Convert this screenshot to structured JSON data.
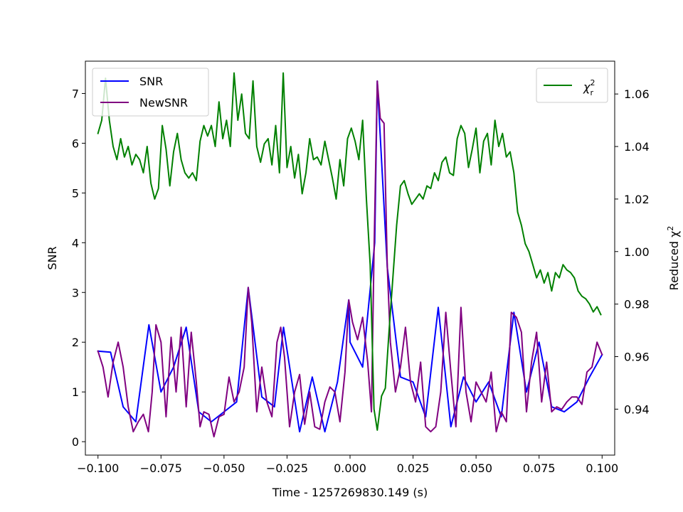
{
  "chart_data": {
    "type": "line",
    "xlabel": "Time - 1257269830.149 (s)",
    "ylabel_left": "SNR",
    "ylabel_right": "Reduced χ",
    "ylabel_right_sup": "2",
    "xlim": [
      -0.105,
      0.105
    ],
    "ylim_left": [
      -0.27,
      7.65
    ],
    "ylim_right": [
      0.9225,
      1.0725
    ],
    "xticks": [
      -0.1,
      -0.075,
      -0.05,
      -0.025,
      0.0,
      0.025,
      0.05,
      0.075,
      0.1
    ],
    "xtick_labels": [
      "−0.100",
      "−0.075",
      "−0.050",
      "−0.025",
      "0.000",
      "0.025",
      "0.050",
      "0.075",
      "0.100"
    ],
    "yticks_left": [
      0,
      1,
      2,
      3,
      4,
      5,
      6,
      7
    ],
    "ytick_labels_left": [
      "0",
      "1",
      "2",
      "3",
      "4",
      "5",
      "6",
      "7"
    ],
    "yticks_right": [
      0.94,
      0.96,
      0.98,
      1.0,
      1.02,
      1.04,
      1.06
    ],
    "ytick_labels_right": [
      "0.94",
      "0.96",
      "0.98",
      "1.00",
      "1.02",
      "1.04",
      "1.06"
    ],
    "legend_left": {
      "placement": "upper-left",
      "entries": [
        "SNR",
        "NewSNR"
      ]
    },
    "legend_right": {
      "placement": "upper-right",
      "entries": [
        "χ"
      ],
      "entry_sup": "2",
      "entry_sub": "r"
    },
    "series": [
      {
        "name": "SNR",
        "axis": "left",
        "color": "#0000ff",
        "x": [
          -0.1,
          -0.095,
          -0.09,
          -0.085,
          -0.0798,
          -0.075,
          -0.07,
          -0.065,
          -0.06,
          -0.055,
          -0.05,
          -0.045,
          -0.0404,
          -0.035,
          -0.03,
          -0.0264,
          -0.02,
          -0.015,
          -0.01,
          -0.005,
          -0.0005,
          0.0,
          0.005,
          0.0098,
          0.0108,
          0.0148,
          0.02,
          0.025,
          0.03,
          0.035,
          0.04,
          0.045,
          0.05,
          0.055,
          0.06,
          0.065,
          0.07,
          0.075,
          0.08,
          0.085,
          0.09,
          0.095,
          0.1
        ],
        "values": [
          1.82,
          1.8,
          0.7,
          0.4,
          2.35,
          1.0,
          1.5,
          2.3,
          0.6,
          0.4,
          0.6,
          0.8,
          3.1,
          0.9,
          0.7,
          2.3,
          0.2,
          1.3,
          0.2,
          1.2,
          2.85,
          2.0,
          1.5,
          4.0,
          7.25,
          3.5,
          1.3,
          1.2,
          0.5,
          2.7,
          0.3,
          1.3,
          0.8,
          1.2,
          0.5,
          2.6,
          1.0,
          2.0,
          0.7,
          0.6,
          0.8,
          1.3,
          1.75
        ]
      },
      {
        "name": "NewSNR",
        "axis": "left",
        "color": "#800080",
        "x": [
          -0.1,
          -0.098,
          -0.096,
          -0.094,
          -0.092,
          -0.09,
          -0.088,
          -0.086,
          -0.084,
          -0.082,
          -0.08,
          -0.0785,
          -0.077,
          -0.075,
          -0.073,
          -0.071,
          -0.069,
          -0.067,
          -0.065,
          -0.063,
          -0.061,
          -0.0595,
          -0.058,
          -0.056,
          -0.054,
          -0.052,
          -0.05,
          -0.048,
          -0.046,
          -0.044,
          -0.042,
          -0.0404,
          -0.039,
          -0.037,
          -0.035,
          -0.033,
          -0.031,
          -0.029,
          -0.0275,
          -0.026,
          -0.024,
          -0.022,
          -0.02,
          -0.018,
          -0.016,
          -0.014,
          -0.012,
          -0.01,
          -0.008,
          -0.006,
          -0.004,
          -0.002,
          -0.0005,
          0.001,
          0.003,
          0.005,
          0.007,
          0.0085,
          0.0095,
          0.0108,
          0.012,
          0.0135,
          0.0148,
          0.016,
          0.018,
          0.02,
          0.022,
          0.024,
          0.026,
          0.028,
          0.03,
          0.032,
          0.034,
          0.036,
          0.038,
          0.04,
          0.042,
          0.044,
          0.046,
          0.048,
          0.05,
          0.052,
          0.054,
          0.056,
          0.058,
          0.06,
          0.062,
          0.064,
          0.066,
          0.068,
          0.07,
          0.072,
          0.074,
          0.076,
          0.078,
          0.08,
          0.082,
          0.084,
          0.086,
          0.088,
          0.09,
          0.092,
          0.094,
          0.096,
          0.098,
          0.1
        ],
        "values": [
          1.82,
          1.5,
          0.9,
          1.6,
          2.0,
          1.5,
          0.7,
          0.2,
          0.4,
          0.55,
          0.2,
          1.0,
          2.35,
          2.0,
          0.5,
          2.1,
          1.0,
          2.3,
          0.7,
          2.2,
          1.2,
          0.3,
          0.6,
          0.55,
          0.1,
          0.5,
          0.55,
          1.3,
          0.8,
          1.0,
          1.5,
          3.1,
          2.4,
          0.6,
          1.5,
          0.8,
          0.5,
          2.0,
          2.3,
          1.7,
          0.3,
          1.0,
          1.35,
          0.35,
          1.0,
          0.3,
          0.25,
          0.8,
          1.1,
          1.0,
          0.4,
          1.4,
          2.85,
          2.4,
          2.05,
          2.5,
          1.6,
          0.6,
          3.8,
          7.25,
          6.5,
          6.4,
          3.5,
          2.0,
          1.0,
          1.5,
          2.3,
          1.2,
          0.8,
          1.6,
          0.3,
          0.2,
          0.3,
          1.0,
          2.6,
          1.4,
          0.3,
          2.7,
          1.0,
          0.4,
          1.2,
          1.0,
          0.8,
          1.4,
          0.2,
          0.6,
          0.4,
          2.6,
          2.5,
          2.2,
          0.6,
          1.6,
          2.2,
          0.8,
          1.6,
          0.6,
          0.7,
          0.65,
          0.8,
          0.9,
          0.9,
          0.75,
          1.4,
          1.5,
          2.0,
          1.75
        ]
      },
      {
        "name": "χr²",
        "axis": "right",
        "color": "#008000",
        "x": [
          -0.1,
          -0.0985,
          -0.097,
          -0.0955,
          -0.094,
          -0.0925,
          -0.091,
          -0.0895,
          -0.088,
          -0.0865,
          -0.085,
          -0.0835,
          -0.082,
          -0.0805,
          -0.079,
          -0.0775,
          -0.076,
          -0.0745,
          -0.073,
          -0.0715,
          -0.07,
          -0.0685,
          -0.067,
          -0.0655,
          -0.064,
          -0.0625,
          -0.061,
          -0.0595,
          -0.058,
          -0.0565,
          -0.055,
          -0.0535,
          -0.052,
          -0.0505,
          -0.049,
          -0.0475,
          -0.046,
          -0.0445,
          -0.043,
          -0.0415,
          -0.04,
          -0.0385,
          -0.037,
          -0.0355,
          -0.034,
          -0.0325,
          -0.031,
          -0.0295,
          -0.028,
          -0.0265,
          -0.025,
          -0.0235,
          -0.022,
          -0.0205,
          -0.019,
          -0.0175,
          -0.016,
          -0.0145,
          -0.013,
          -0.0115,
          -0.01,
          -0.0085,
          -0.007,
          -0.0055,
          -0.004,
          -0.0025,
          -0.001,
          0.0005,
          0.002,
          0.0035,
          0.005,
          0.0065,
          0.008,
          0.0095,
          0.0108,
          0.0125,
          0.014,
          0.0155,
          0.017,
          0.0185,
          0.02,
          0.0215,
          0.023,
          0.0245,
          0.026,
          0.0275,
          0.029,
          0.0305,
          0.032,
          0.0335,
          0.035,
          0.0365,
          0.038,
          0.0395,
          0.041,
          0.0425,
          0.044,
          0.0455,
          0.047,
          0.0485,
          0.05,
          0.0515,
          0.053,
          0.0545,
          0.056,
          0.0575,
          0.059,
          0.0605,
          0.062,
          0.0635,
          0.065,
          0.0665,
          0.068,
          0.0695,
          0.071,
          0.0725,
          0.074,
          0.0755,
          0.077,
          0.0785,
          0.08,
          0.0815,
          0.083,
          0.0845,
          0.086,
          0.0875,
          0.089,
          0.0905,
          0.092,
          0.0935,
          0.095,
          0.0965,
          0.098,
          0.0995
        ],
        "values": [
          1.045,
          1.05,
          1.066,
          1.05,
          1.04,
          1.035,
          1.043,
          1.036,
          1.04,
          1.033,
          1.037,
          1.035,
          1.03,
          1.04,
          1.026,
          1.02,
          1.024,
          1.048,
          1.039,
          1.025,
          1.038,
          1.045,
          1.035,
          1.03,
          1.028,
          1.03,
          1.027,
          1.042,
          1.048,
          1.044,
          1.048,
          1.04,
          1.057,
          1.043,
          1.05,
          1.04,
          1.068,
          1.05,
          1.06,
          1.045,
          1.043,
          1.065,
          1.04,
          1.034,
          1.041,
          1.043,
          1.033,
          1.048,
          1.03,
          1.068,
          1.032,
          1.04,
          1.028,
          1.037,
          1.022,
          1.03,
          1.043,
          1.035,
          1.036,
          1.033,
          1.042,
          1.035,
          1.028,
          1.02,
          1.035,
          1.025,
          1.043,
          1.047,
          1.042,
          1.035,
          1.05,
          1.02,
          0.995,
          0.94,
          0.932,
          0.945,
          0.948,
          0.97,
          0.99,
          1.01,
          1.025,
          1.027,
          1.022,
          1.018,
          1.02,
          1.022,
          1.02,
          1.025,
          1.024,
          1.03,
          1.027,
          1.034,
          1.036,
          1.03,
          1.029,
          1.043,
          1.048,
          1.045,
          1.032,
          1.039,
          1.047,
          1.03,
          1.042,
          1.045,
          1.033,
          1.05,
          1.04,
          1.045,
          1.036,
          1.038,
          1.03,
          1.015,
          1.01,
          1.003,
          1.0,
          0.995,
          0.99,
          0.993,
          0.988,
          0.992,
          0.985,
          0.992,
          0.99,
          0.995,
          0.993,
          0.992,
          0.99,
          0.985,
          0.983,
          0.982,
          0.98,
          0.977,
          0.979,
          0.976
        ]
      }
    ]
  }
}
